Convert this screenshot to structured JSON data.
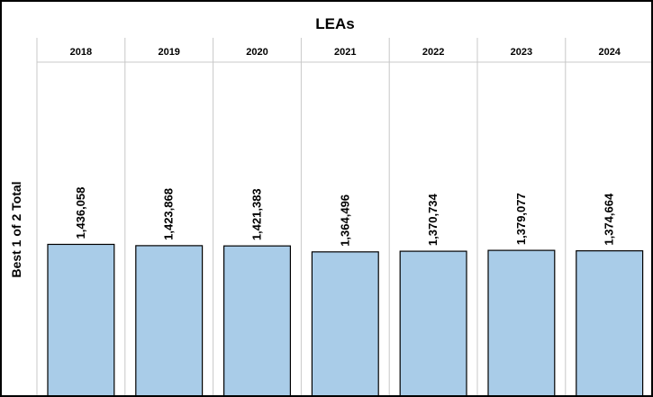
{
  "chart_data": {
    "type": "bar",
    "title": "LEAs",
    "xlabel": "",
    "ylabel": "Best 1 of 2 Total",
    "categories": [
      "2018",
      "2019",
      "2020",
      "2021",
      "2022",
      "2023",
      "2024"
    ],
    "values": [
      1436058,
      1423868,
      1421383,
      1364496,
      1370734,
      1379077,
      1374664
    ],
    "value_labels": [
      "1,436,058",
      "1,423,868",
      "1,421,383",
      "1,364,496",
      "1,370,734",
      "1,379,077",
      "1,374,664"
    ],
    "ylim": [
      0,
      2400000
    ],
    "grid": false,
    "legend": "none",
    "bar_color": "#A9CCE8",
    "bar_edge_color": "#000000"
  }
}
